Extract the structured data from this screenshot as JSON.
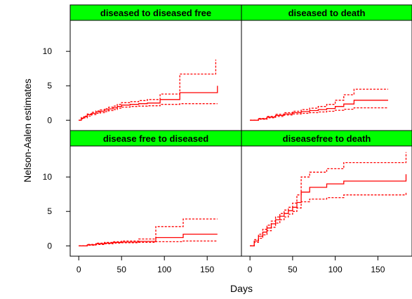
{
  "chart_data": {
    "type": "line",
    "layout": "2x2 trellis",
    "xlabel": "Days",
    "ylabel": "Nelson-Aalen estimates",
    "xlim": [
      -10,
      190
    ],
    "ylim": [
      -1.5,
      14.5
    ],
    "xticks": [
      0,
      50,
      100,
      150
    ],
    "yticks": [
      0,
      5,
      10
    ],
    "strip_color": "#00FF00",
    "line_color": "#FF0000",
    "panels": [
      {
        "title": "diseased to diseased free",
        "estimate": [
          [
            0,
            0
          ],
          [
            3,
            0.3
          ],
          [
            6,
            0.5
          ],
          [
            10,
            0.8
          ],
          [
            15,
            1.0
          ],
          [
            20,
            1.2
          ],
          [
            25,
            1.3
          ],
          [
            30,
            1.5
          ],
          [
            35,
            1.65
          ],
          [
            40,
            1.8
          ],
          [
            45,
            2.0
          ],
          [
            50,
            2.2
          ],
          [
            60,
            2.3
          ],
          [
            70,
            2.4
          ],
          [
            80,
            2.5
          ],
          [
            95,
            3.0
          ],
          [
            118,
            4.0
          ],
          [
            162,
            5.0
          ]
        ],
        "upper": [
          [
            0,
            0
          ],
          [
            3,
            0.4
          ],
          [
            6,
            0.6
          ],
          [
            10,
            0.9
          ],
          [
            15,
            1.15
          ],
          [
            20,
            1.35
          ],
          [
            25,
            1.5
          ],
          [
            30,
            1.7
          ],
          [
            35,
            1.9
          ],
          [
            40,
            2.05
          ],
          [
            45,
            2.3
          ],
          [
            50,
            2.55
          ],
          [
            60,
            2.7
          ],
          [
            70,
            2.85
          ],
          [
            80,
            3.0
          ],
          [
            95,
            3.8
          ],
          [
            118,
            6.7
          ],
          [
            160,
            8.8
          ]
        ],
        "lower": [
          [
            0,
            0
          ],
          [
            3,
            0.2
          ],
          [
            6,
            0.35
          ],
          [
            10,
            0.6
          ],
          [
            15,
            0.8
          ],
          [
            20,
            1.0
          ],
          [
            25,
            1.1
          ],
          [
            30,
            1.25
          ],
          [
            35,
            1.4
          ],
          [
            40,
            1.55
          ],
          [
            45,
            1.75
          ],
          [
            50,
            1.9
          ],
          [
            60,
            2.0
          ],
          [
            70,
            2.05
          ],
          [
            80,
            2.1
          ],
          [
            95,
            2.3
          ],
          [
            118,
            2.4
          ],
          [
            162,
            2.4
          ]
        ]
      },
      {
        "title": "diseased to death",
        "estimate": [
          [
            0,
            0
          ],
          [
            10,
            0.2
          ],
          [
            20,
            0.45
          ],
          [
            30,
            0.7
          ],
          [
            40,
            0.9
          ],
          [
            50,
            1.1
          ],
          [
            60,
            1.25
          ],
          [
            70,
            1.4
          ],
          [
            80,
            1.55
          ],
          [
            90,
            1.7
          ],
          [
            100,
            2.0
          ],
          [
            110,
            2.35
          ],
          [
            122,
            2.9
          ],
          [
            162,
            2.9
          ]
        ],
        "upper": [
          [
            0,
            0
          ],
          [
            10,
            0.25
          ],
          [
            20,
            0.55
          ],
          [
            30,
            0.85
          ],
          [
            40,
            1.1
          ],
          [
            50,
            1.3
          ],
          [
            60,
            1.55
          ],
          [
            70,
            1.75
          ],
          [
            80,
            2.0
          ],
          [
            90,
            2.3
          ],
          [
            100,
            2.9
          ],
          [
            110,
            3.7
          ],
          [
            122,
            4.5
          ],
          [
            162,
            4.5
          ]
        ],
        "lower": [
          [
            0,
            0
          ],
          [
            10,
            0.15
          ],
          [
            20,
            0.35
          ],
          [
            30,
            0.55
          ],
          [
            40,
            0.75
          ],
          [
            50,
            0.9
          ],
          [
            60,
            1.0
          ],
          [
            70,
            1.1
          ],
          [
            80,
            1.2
          ],
          [
            90,
            1.3
          ],
          [
            100,
            1.45
          ],
          [
            110,
            1.6
          ],
          [
            122,
            1.8
          ],
          [
            162,
            1.8
          ]
        ]
      },
      {
        "title": "disease free to diseased",
        "estimate": [
          [
            0,
            0
          ],
          [
            10,
            0.15
          ],
          [
            20,
            0.3
          ],
          [
            30,
            0.4
          ],
          [
            40,
            0.5
          ],
          [
            50,
            0.55
          ],
          [
            70,
            0.65
          ],
          [
            90,
            1.2
          ],
          [
            122,
            1.7
          ],
          [
            162,
            1.7
          ]
        ],
        "upper": [
          [
            0,
            0
          ],
          [
            10,
            0.2
          ],
          [
            20,
            0.4
          ],
          [
            30,
            0.5
          ],
          [
            40,
            0.6
          ],
          [
            50,
            0.7
          ],
          [
            70,
            1.0
          ],
          [
            90,
            2.8
          ],
          [
            122,
            3.9
          ],
          [
            162,
            3.9
          ]
        ],
        "lower": [
          [
            0,
            0
          ],
          [
            10,
            0.1
          ],
          [
            20,
            0.2
          ],
          [
            30,
            0.3
          ],
          [
            40,
            0.4
          ],
          [
            50,
            0.45
          ],
          [
            70,
            0.5
          ],
          [
            90,
            0.6
          ],
          [
            122,
            0.7
          ],
          [
            162,
            0.7
          ]
        ]
      },
      {
        "title": "diseasefree to death",
        "estimate": [
          [
            0,
            0
          ],
          [
            5,
            0.7
          ],
          [
            10,
            1.4
          ],
          [
            15,
            2.0
          ],
          [
            20,
            2.6
          ],
          [
            25,
            3.2
          ],
          [
            30,
            3.8
          ],
          [
            35,
            4.3
          ],
          [
            40,
            4.7
          ],
          [
            45,
            5.1
          ],
          [
            50,
            5.6
          ],
          [
            55,
            6.3
          ],
          [
            60,
            7.8
          ],
          [
            70,
            8.5
          ],
          [
            90,
            9.0
          ],
          [
            110,
            9.4
          ],
          [
            180,
            9.4
          ],
          [
            183,
            10.4
          ]
        ],
        "upper": [
          [
            0,
            0
          ],
          [
            5,
            0.9
          ],
          [
            10,
            1.7
          ],
          [
            15,
            2.4
          ],
          [
            20,
            3.0
          ],
          [
            25,
            3.6
          ],
          [
            30,
            4.2
          ],
          [
            35,
            4.7
          ],
          [
            40,
            5.2
          ],
          [
            45,
            5.6
          ],
          [
            50,
            6.2
          ],
          [
            55,
            7.4
          ],
          [
            60,
            10.0
          ],
          [
            70,
            10.7
          ],
          [
            90,
            11.2
          ],
          [
            110,
            12.1
          ],
          [
            180,
            12.1
          ],
          [
            183,
            13.6
          ]
        ],
        "lower": [
          [
            0,
            0
          ],
          [
            5,
            0.5
          ],
          [
            10,
            1.1
          ],
          [
            15,
            1.6
          ],
          [
            20,
            2.2
          ],
          [
            25,
            2.7
          ],
          [
            30,
            3.3
          ],
          [
            35,
            3.8
          ],
          [
            40,
            4.2
          ],
          [
            45,
            4.6
          ],
          [
            50,
            5.0
          ],
          [
            55,
            5.5
          ],
          [
            60,
            6.4
          ],
          [
            70,
            6.8
          ],
          [
            90,
            7.0
          ],
          [
            110,
            7.4
          ],
          [
            180,
            7.4
          ],
          [
            183,
            7.8
          ]
        ]
      }
    ]
  }
}
